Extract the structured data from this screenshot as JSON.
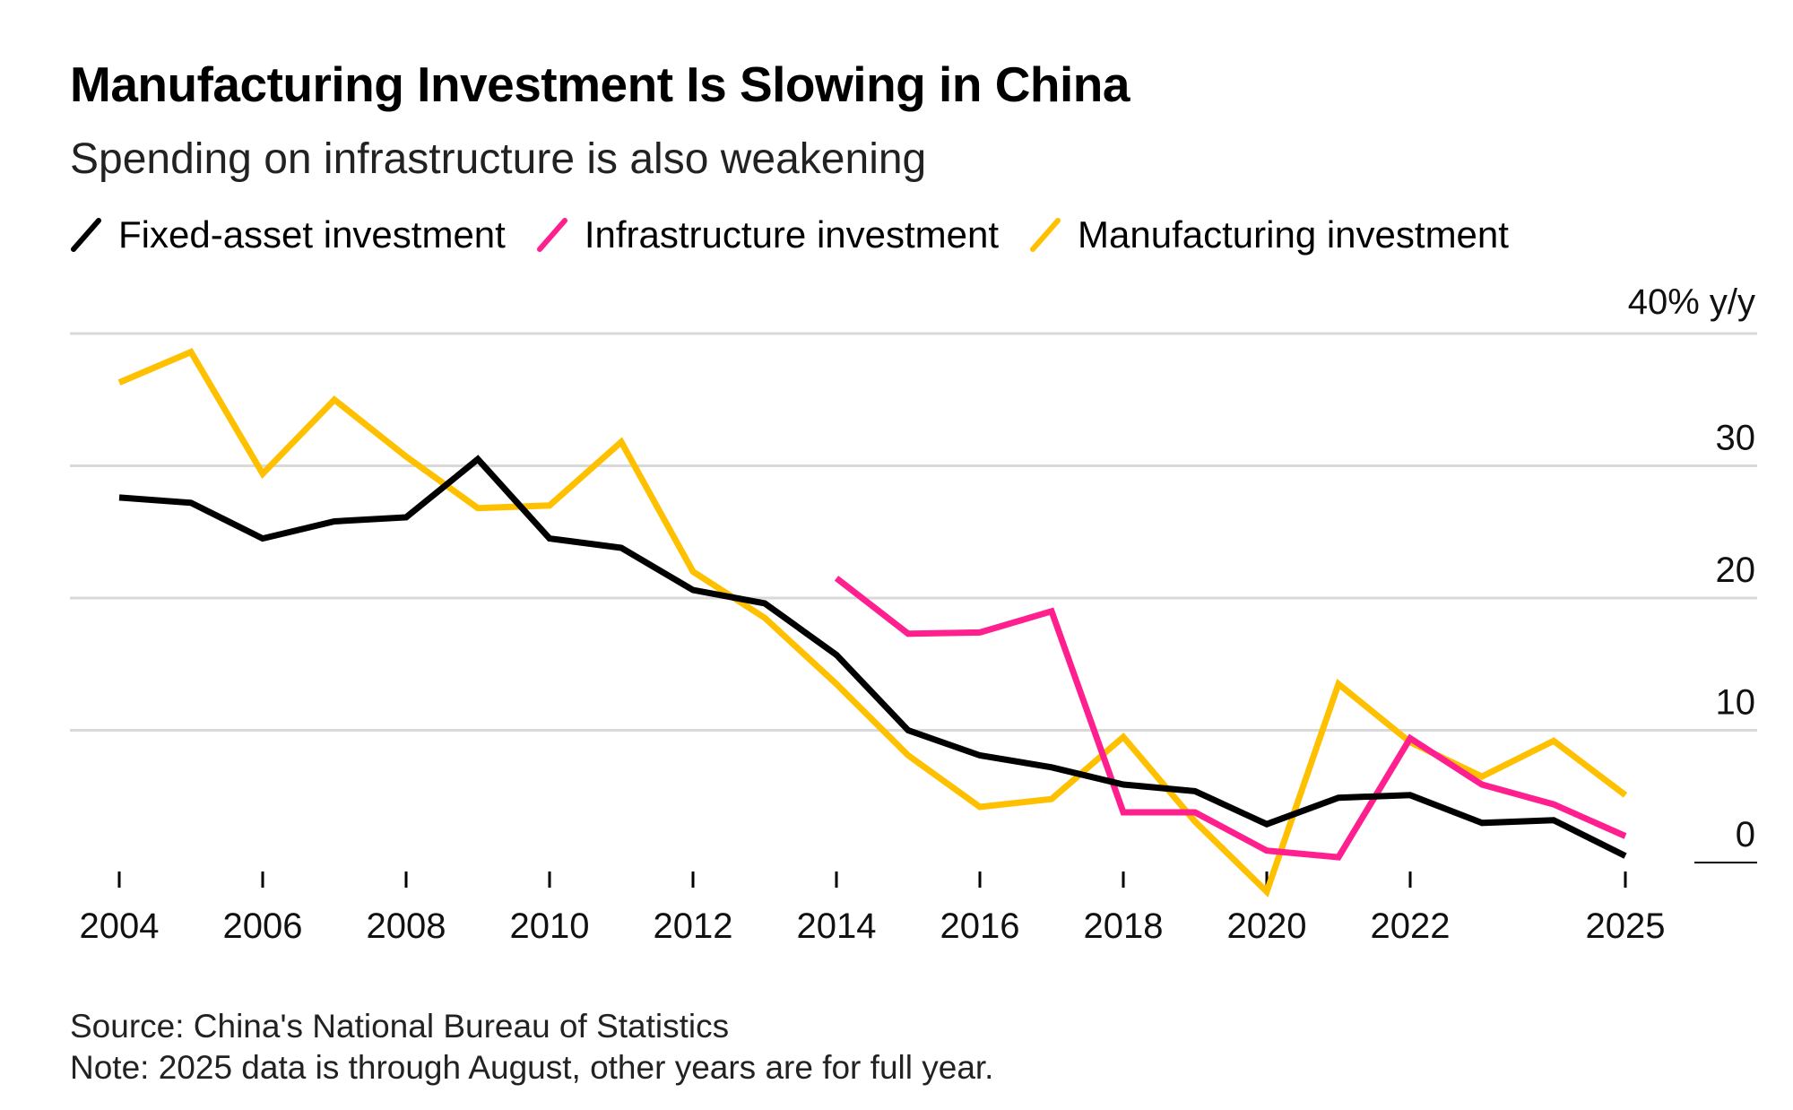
{
  "title": "Manufacturing Investment Is Slowing in China",
  "subtitle": "Spending on infrastructure is also weakening",
  "source": "Source: China's National Bureau of Statistics",
  "note": "Note: 2025 data is through August, other years are for full year.",
  "colors": {
    "fixed": "#000000",
    "infra": "#ff1f8e",
    "manuf": "#ffc000",
    "grid": "#d9d9d9"
  },
  "chart_data": {
    "type": "line",
    "ylabel": "40% y/y",
    "ylim": [
      -3,
      40
    ],
    "yticks": [
      0,
      10,
      20,
      30
    ],
    "xlim": [
      2004,
      2025
    ],
    "xticks": [
      "2004",
      "2006",
      "2008",
      "2010",
      "2012",
      "2014",
      "2016",
      "2018",
      "2020",
      "2022",
      "2025"
    ],
    "grid": true,
    "legend_position": "top-left",
    "series": [
      {
        "name": "Fixed-asset investment",
        "color_key": "fixed",
        "x": [
          2004,
          2005,
          2006,
          2007,
          2008,
          2009,
          2010,
          2011,
          2012,
          2013,
          2014,
          2015,
          2016,
          2017,
          2018,
          2019,
          2020,
          2021,
          2022,
          2023,
          2024,
          2025
        ],
        "y": [
          27.6,
          27.2,
          24.5,
          25.8,
          26.1,
          30.5,
          24.5,
          23.8,
          20.6,
          19.6,
          15.7,
          10.0,
          8.1,
          7.2,
          5.9,
          5.4,
          2.9,
          4.9,
          5.1,
          3.0,
          3.2,
          0.5
        ]
      },
      {
        "name": "Infrastructure investment",
        "color_key": "infra",
        "x": [
          2014,
          2015,
          2016,
          2017,
          2018,
          2019,
          2020,
          2021,
          2022,
          2023,
          2024,
          2025
        ],
        "y": [
          21.5,
          17.3,
          17.4,
          19.0,
          3.8,
          3.8,
          0.9,
          0.4,
          9.4,
          5.9,
          4.4,
          2.0
        ]
      },
      {
        "name": "Manufacturing investment",
        "color_key": "manuf",
        "x": [
          2004,
          2005,
          2006,
          2007,
          2008,
          2009,
          2010,
          2011,
          2012,
          2013,
          2014,
          2015,
          2016,
          2017,
          2018,
          2019,
          2020,
          2021,
          2022,
          2023,
          2024,
          2025
        ],
        "y": [
          36.3,
          38.6,
          29.4,
          35.0,
          30.7,
          26.8,
          27.0,
          31.8,
          22.0,
          18.5,
          13.5,
          8.1,
          4.2,
          4.8,
          9.5,
          3.1,
          -2.2,
          13.5,
          9.1,
          6.5,
          9.2,
          5.1
        ]
      }
    ]
  }
}
